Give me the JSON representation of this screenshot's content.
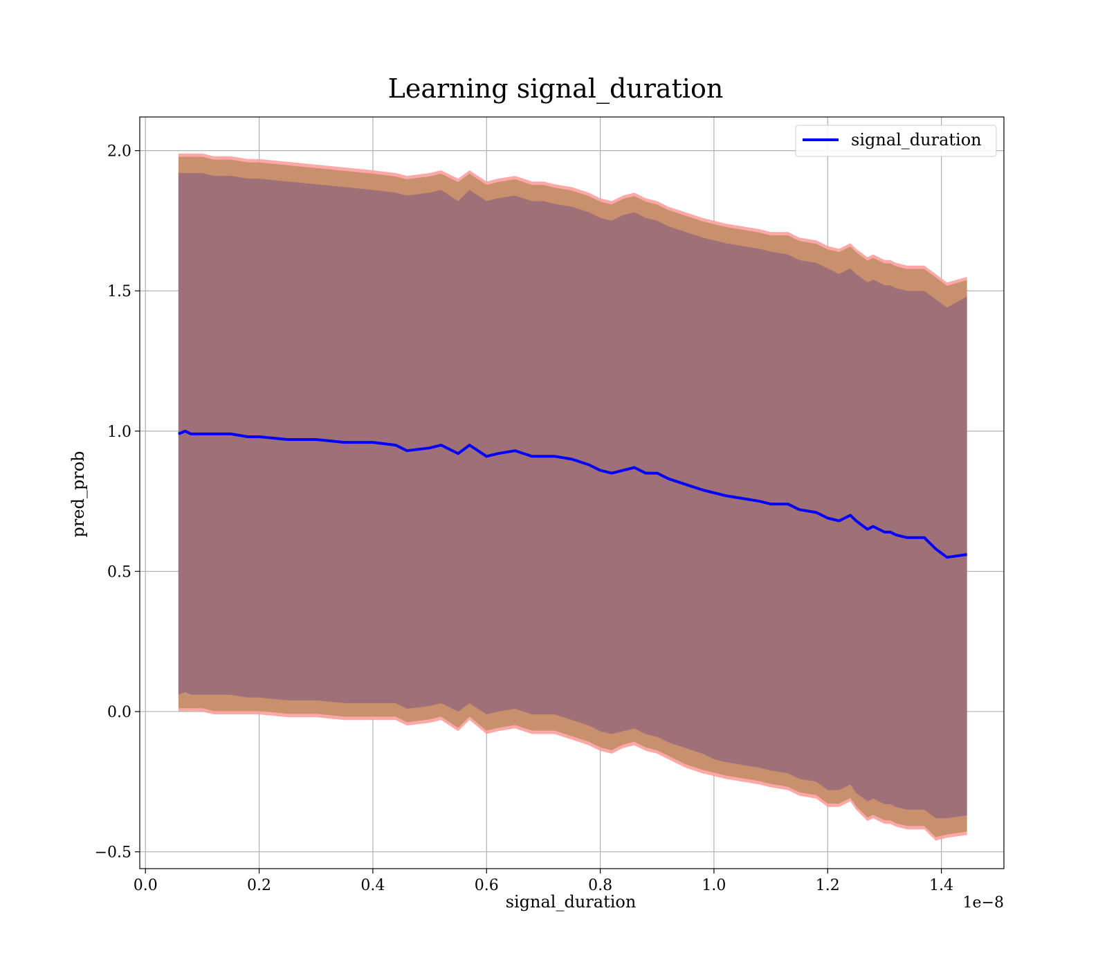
{
  "chart_data": {
    "type": "line",
    "title": "Learning signal_duration",
    "xlabel": "signal_duration",
    "ylabel": "pred_prob",
    "x_offset_text": "1e−8",
    "xlim": [
      -0.01,
      1.51
    ],
    "ylim": [
      -0.56,
      2.12
    ],
    "x_ticks": [
      0.0,
      0.2,
      0.4,
      0.6,
      0.8,
      1.0,
      1.2,
      1.4
    ],
    "x_tick_labels": [
      "0.0",
      "0.2",
      "0.4",
      "0.6",
      "0.8",
      "1.0",
      "1.2",
      "1.4"
    ],
    "y_ticks": [
      -0.5,
      0.0,
      0.5,
      1.0,
      1.5,
      2.0
    ],
    "y_tick_labels": [
      "−0.5",
      "0.0",
      "0.5",
      "1.0",
      "1.5",
      "2.0"
    ],
    "grid": true,
    "legend_position": "top-right",
    "colors": {
      "line": "#0000ff",
      "band_outer": "#ff9999",
      "band_middle": "#c8906c",
      "band_inner": "#a07079",
      "grid": "#b0b0b0",
      "axes": "#000000"
    },
    "series": [
      {
        "name": "signal_duration",
        "x": [
          0.058,
          0.07,
          0.08,
          0.1,
          0.12,
          0.15,
          0.18,
          0.2,
          0.25,
          0.3,
          0.35,
          0.4,
          0.44,
          0.46,
          0.5,
          0.52,
          0.55,
          0.57,
          0.6,
          0.62,
          0.65,
          0.68,
          0.7,
          0.72,
          0.75,
          0.78,
          0.8,
          0.82,
          0.84,
          0.86,
          0.88,
          0.9,
          0.92,
          0.95,
          0.98,
          1.0,
          1.02,
          1.05,
          1.08,
          1.1,
          1.13,
          1.15,
          1.18,
          1.2,
          1.22,
          1.24,
          1.25,
          1.27,
          1.28,
          1.3,
          1.31,
          1.32,
          1.34,
          1.37,
          1.39,
          1.41,
          1.445
        ],
        "y": [
          0.99,
          1.0,
          0.99,
          0.99,
          0.99,
          0.99,
          0.98,
          0.98,
          0.97,
          0.97,
          0.96,
          0.96,
          0.95,
          0.93,
          0.94,
          0.95,
          0.92,
          0.95,
          0.91,
          0.92,
          0.93,
          0.91,
          0.91,
          0.91,
          0.9,
          0.88,
          0.86,
          0.85,
          0.86,
          0.87,
          0.85,
          0.85,
          0.83,
          0.81,
          0.79,
          0.78,
          0.77,
          0.76,
          0.75,
          0.74,
          0.74,
          0.72,
          0.71,
          0.69,
          0.68,
          0.7,
          0.68,
          0.65,
          0.66,
          0.64,
          0.64,
          0.63,
          0.62,
          0.62,
          0.58,
          0.55,
          0.56
        ],
        "band_outer_upper": [
          1.99,
          1.99,
          1.99,
          1.99,
          1.98,
          1.98,
          1.97,
          1.97,
          1.96,
          1.95,
          1.94,
          1.93,
          1.92,
          1.91,
          1.92,
          1.93,
          1.9,
          1.93,
          1.89,
          1.9,
          1.91,
          1.89,
          1.89,
          1.88,
          1.87,
          1.85,
          1.83,
          1.82,
          1.84,
          1.85,
          1.83,
          1.82,
          1.8,
          1.78,
          1.76,
          1.75,
          1.74,
          1.73,
          1.72,
          1.71,
          1.71,
          1.69,
          1.68,
          1.66,
          1.65,
          1.67,
          1.65,
          1.62,
          1.63,
          1.61,
          1.61,
          1.6,
          1.59,
          1.59,
          1.56,
          1.53,
          1.55
        ],
        "band_inner_upper": [
          1.92,
          1.92,
          1.92,
          1.92,
          1.91,
          1.91,
          1.9,
          1.9,
          1.89,
          1.88,
          1.87,
          1.86,
          1.85,
          1.84,
          1.85,
          1.86,
          1.82,
          1.86,
          1.82,
          1.83,
          1.84,
          1.82,
          1.82,
          1.81,
          1.8,
          1.78,
          1.76,
          1.75,
          1.77,
          1.78,
          1.76,
          1.75,
          1.73,
          1.71,
          1.69,
          1.68,
          1.67,
          1.66,
          1.65,
          1.64,
          1.63,
          1.61,
          1.6,
          1.58,
          1.56,
          1.58,
          1.56,
          1.53,
          1.54,
          1.52,
          1.52,
          1.51,
          1.5,
          1.5,
          1.47,
          1.44,
          1.48
        ],
        "band_inner_lower": [
          0.06,
          0.07,
          0.06,
          0.06,
          0.06,
          0.06,
          0.05,
          0.05,
          0.04,
          0.04,
          0.03,
          0.03,
          0.03,
          0.01,
          0.02,
          0.03,
          0.0,
          0.03,
          -0.01,
          0.0,
          0.01,
          -0.01,
          -0.01,
          -0.01,
          -0.03,
          -0.05,
          -0.07,
          -0.08,
          -0.07,
          -0.06,
          -0.08,
          -0.09,
          -0.11,
          -0.13,
          -0.15,
          -0.17,
          -0.18,
          -0.19,
          -0.2,
          -0.21,
          -0.22,
          -0.24,
          -0.25,
          -0.28,
          -0.28,
          -0.26,
          -0.29,
          -0.32,
          -0.31,
          -0.33,
          -0.33,
          -0.34,
          -0.35,
          -0.35,
          -0.38,
          -0.38,
          -0.37
        ],
        "band_outer_lower": [
          0.0,
          0.0,
          0.0,
          0.0,
          -0.01,
          -0.01,
          -0.01,
          -0.01,
          -0.02,
          -0.02,
          -0.03,
          -0.03,
          -0.03,
          -0.05,
          -0.04,
          -0.03,
          -0.07,
          -0.03,
          -0.08,
          -0.07,
          -0.06,
          -0.08,
          -0.08,
          -0.08,
          -0.1,
          -0.12,
          -0.14,
          -0.15,
          -0.13,
          -0.12,
          -0.14,
          -0.15,
          -0.17,
          -0.2,
          -0.22,
          -0.23,
          -0.24,
          -0.25,
          -0.26,
          -0.27,
          -0.28,
          -0.3,
          -0.31,
          -0.34,
          -0.34,
          -0.32,
          -0.35,
          -0.39,
          -0.38,
          -0.4,
          -0.4,
          -0.41,
          -0.42,
          -0.42,
          -0.46,
          -0.45,
          -0.44
        ]
      }
    ]
  }
}
